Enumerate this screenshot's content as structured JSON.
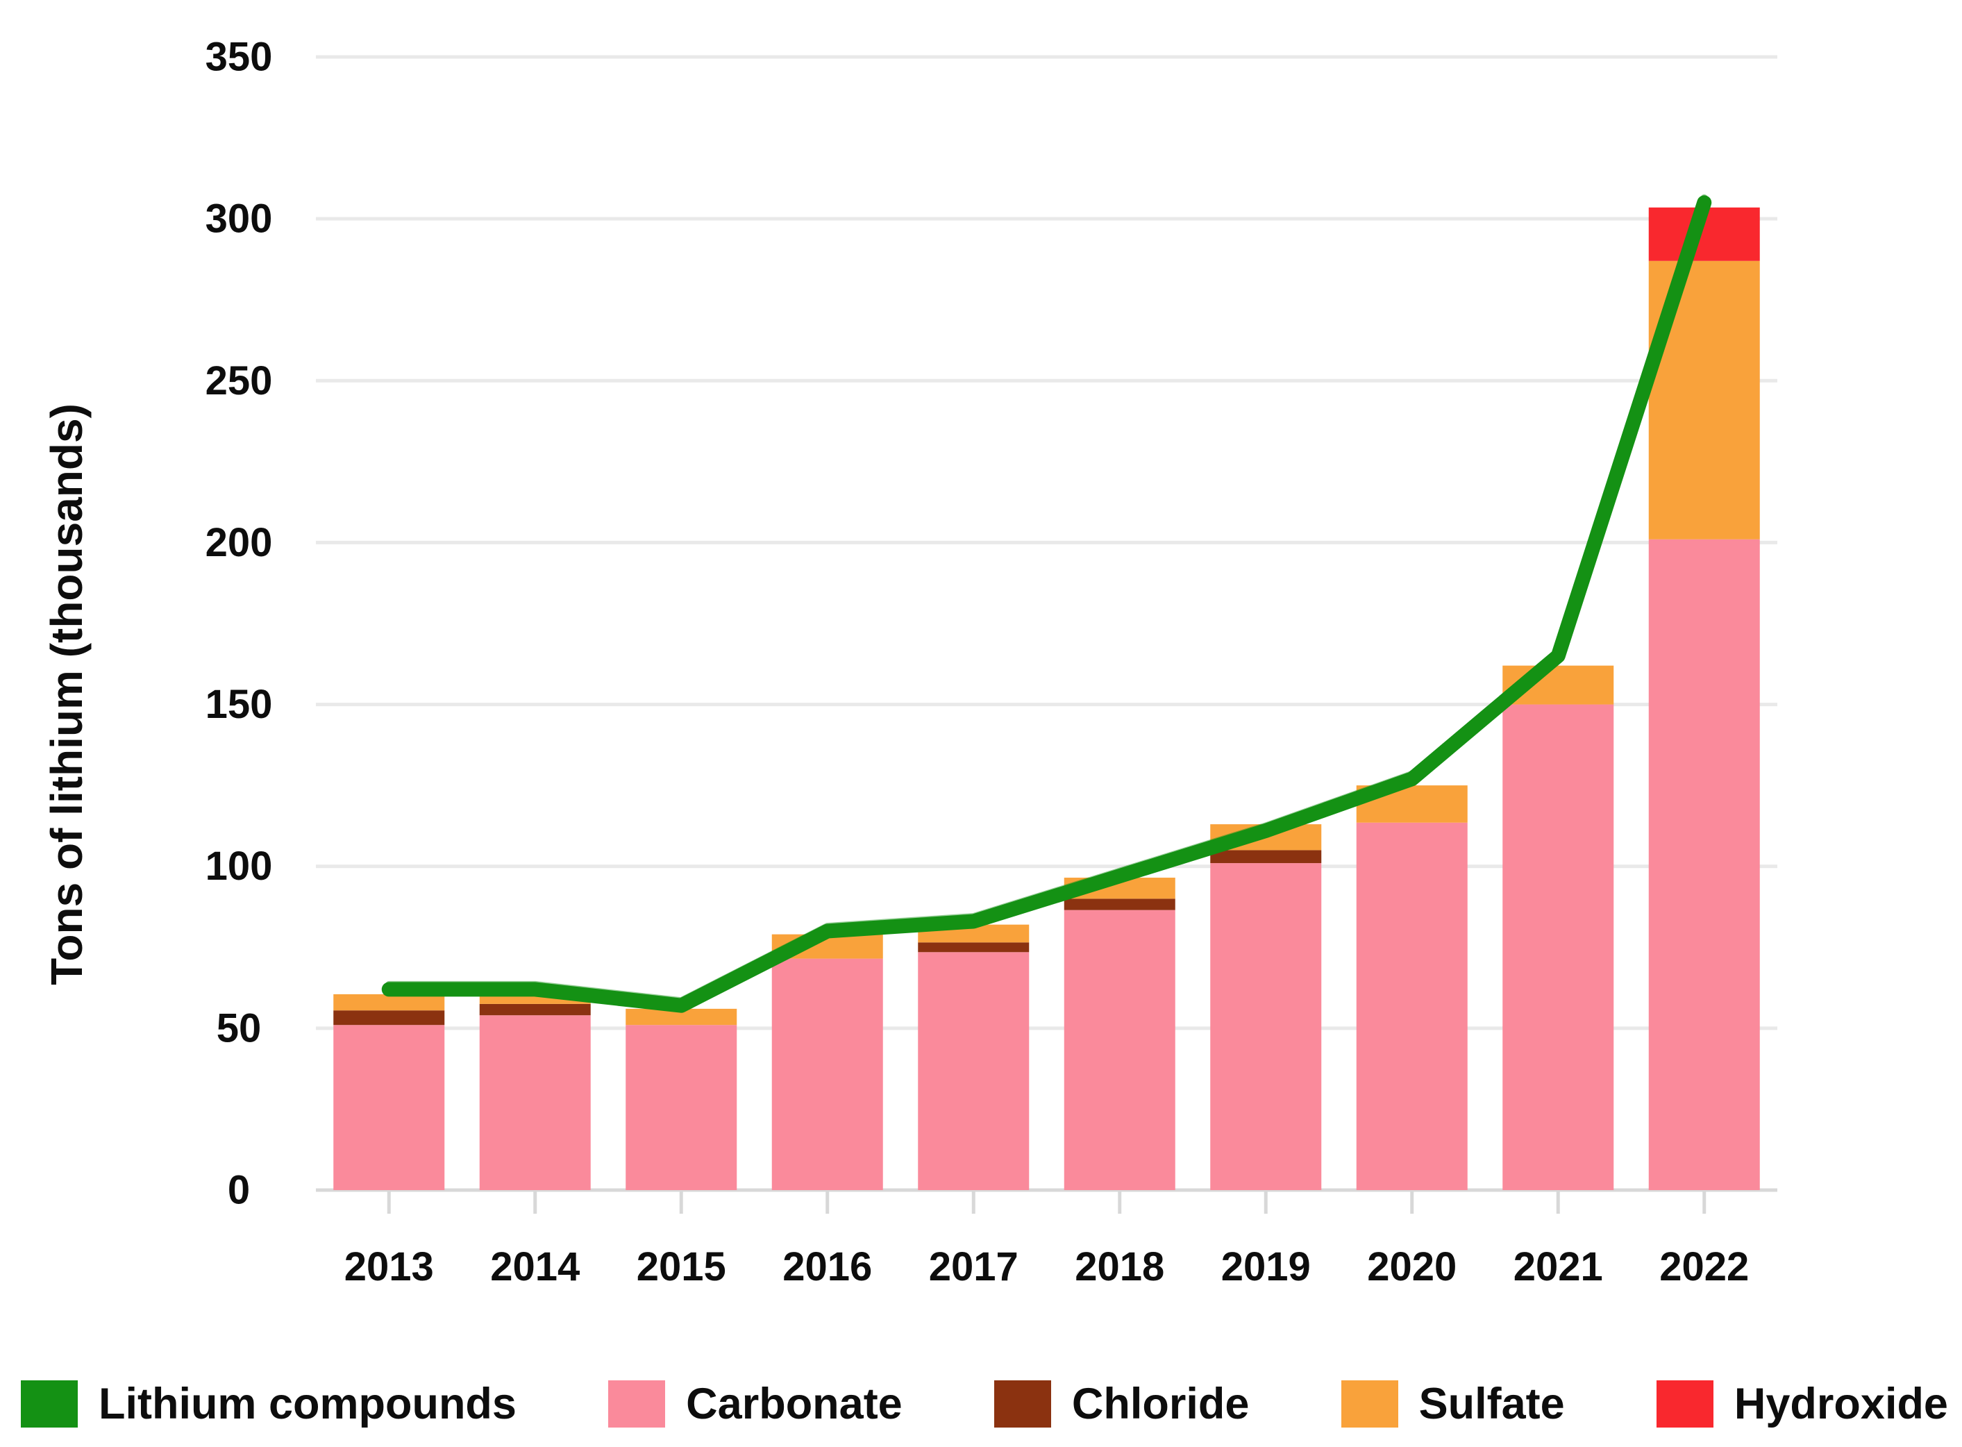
{
  "page": {
    "background": "#ffffff",
    "text_color": "#0d0d0d",
    "gridline_color": "#e9e9e9",
    "axis_color": "#d8d8d8"
  },
  "chart_data": {
    "type": "bar",
    "stacked": true,
    "title": "",
    "xlabel": "",
    "ylabel": "Tons of lithium (thousands)",
    "categories": [
      "2013",
      "2014",
      "2015",
      "2016",
      "2017",
      "2018",
      "2019",
      "2020",
      "2021",
      "2022"
    ],
    "series": [
      {
        "name": "Carbonate",
        "color": "#fa8a9b",
        "values": [
          51,
          54,
          51,
          71.5,
          73.5,
          86.5,
          101,
          113.5,
          150,
          201
        ]
      },
      {
        "name": "Chloride",
        "color": "#8b3210",
        "values": [
          4.5,
          3.5,
          0,
          0,
          3,
          3.5,
          4,
          0,
          0,
          0
        ]
      },
      {
        "name": "Sulfate",
        "color": "#f9a23b",
        "values": [
          5,
          4.5,
          5,
          7.5,
          5.5,
          6.5,
          8,
          11.5,
          12,
          86
        ]
      },
      {
        "name": "Hydroxide",
        "color": "#f9282e",
        "values": [
          0,
          0,
          0,
          0,
          0,
          0,
          0,
          0,
          0,
          16.5
        ]
      }
    ],
    "line_series": {
      "name": "Lithium compounds",
      "color": "#149114",
      "values": [
        62,
        62,
        57,
        80,
        83,
        97,
        111,
        127,
        165,
        305
      ]
    },
    "ylim": [
      0,
      350
    ],
    "yticks": [
      0,
      50,
      100,
      150,
      200,
      250,
      300,
      350
    ],
    "grid": true,
    "legend_position": "bottom",
    "legend": [
      {
        "label": "Lithium compounds",
        "color": "#149114",
        "kind": "line"
      },
      {
        "label": "Carbonate",
        "color": "#fa8a9b",
        "kind": "bar"
      },
      {
        "label": "Chloride",
        "color": "#8b3210",
        "kind": "bar"
      },
      {
        "label": "Sulfate",
        "color": "#f9a23b",
        "kind": "bar"
      },
      {
        "label": "Hydroxide",
        "color": "#f9282e",
        "kind": "bar"
      }
    ]
  }
}
